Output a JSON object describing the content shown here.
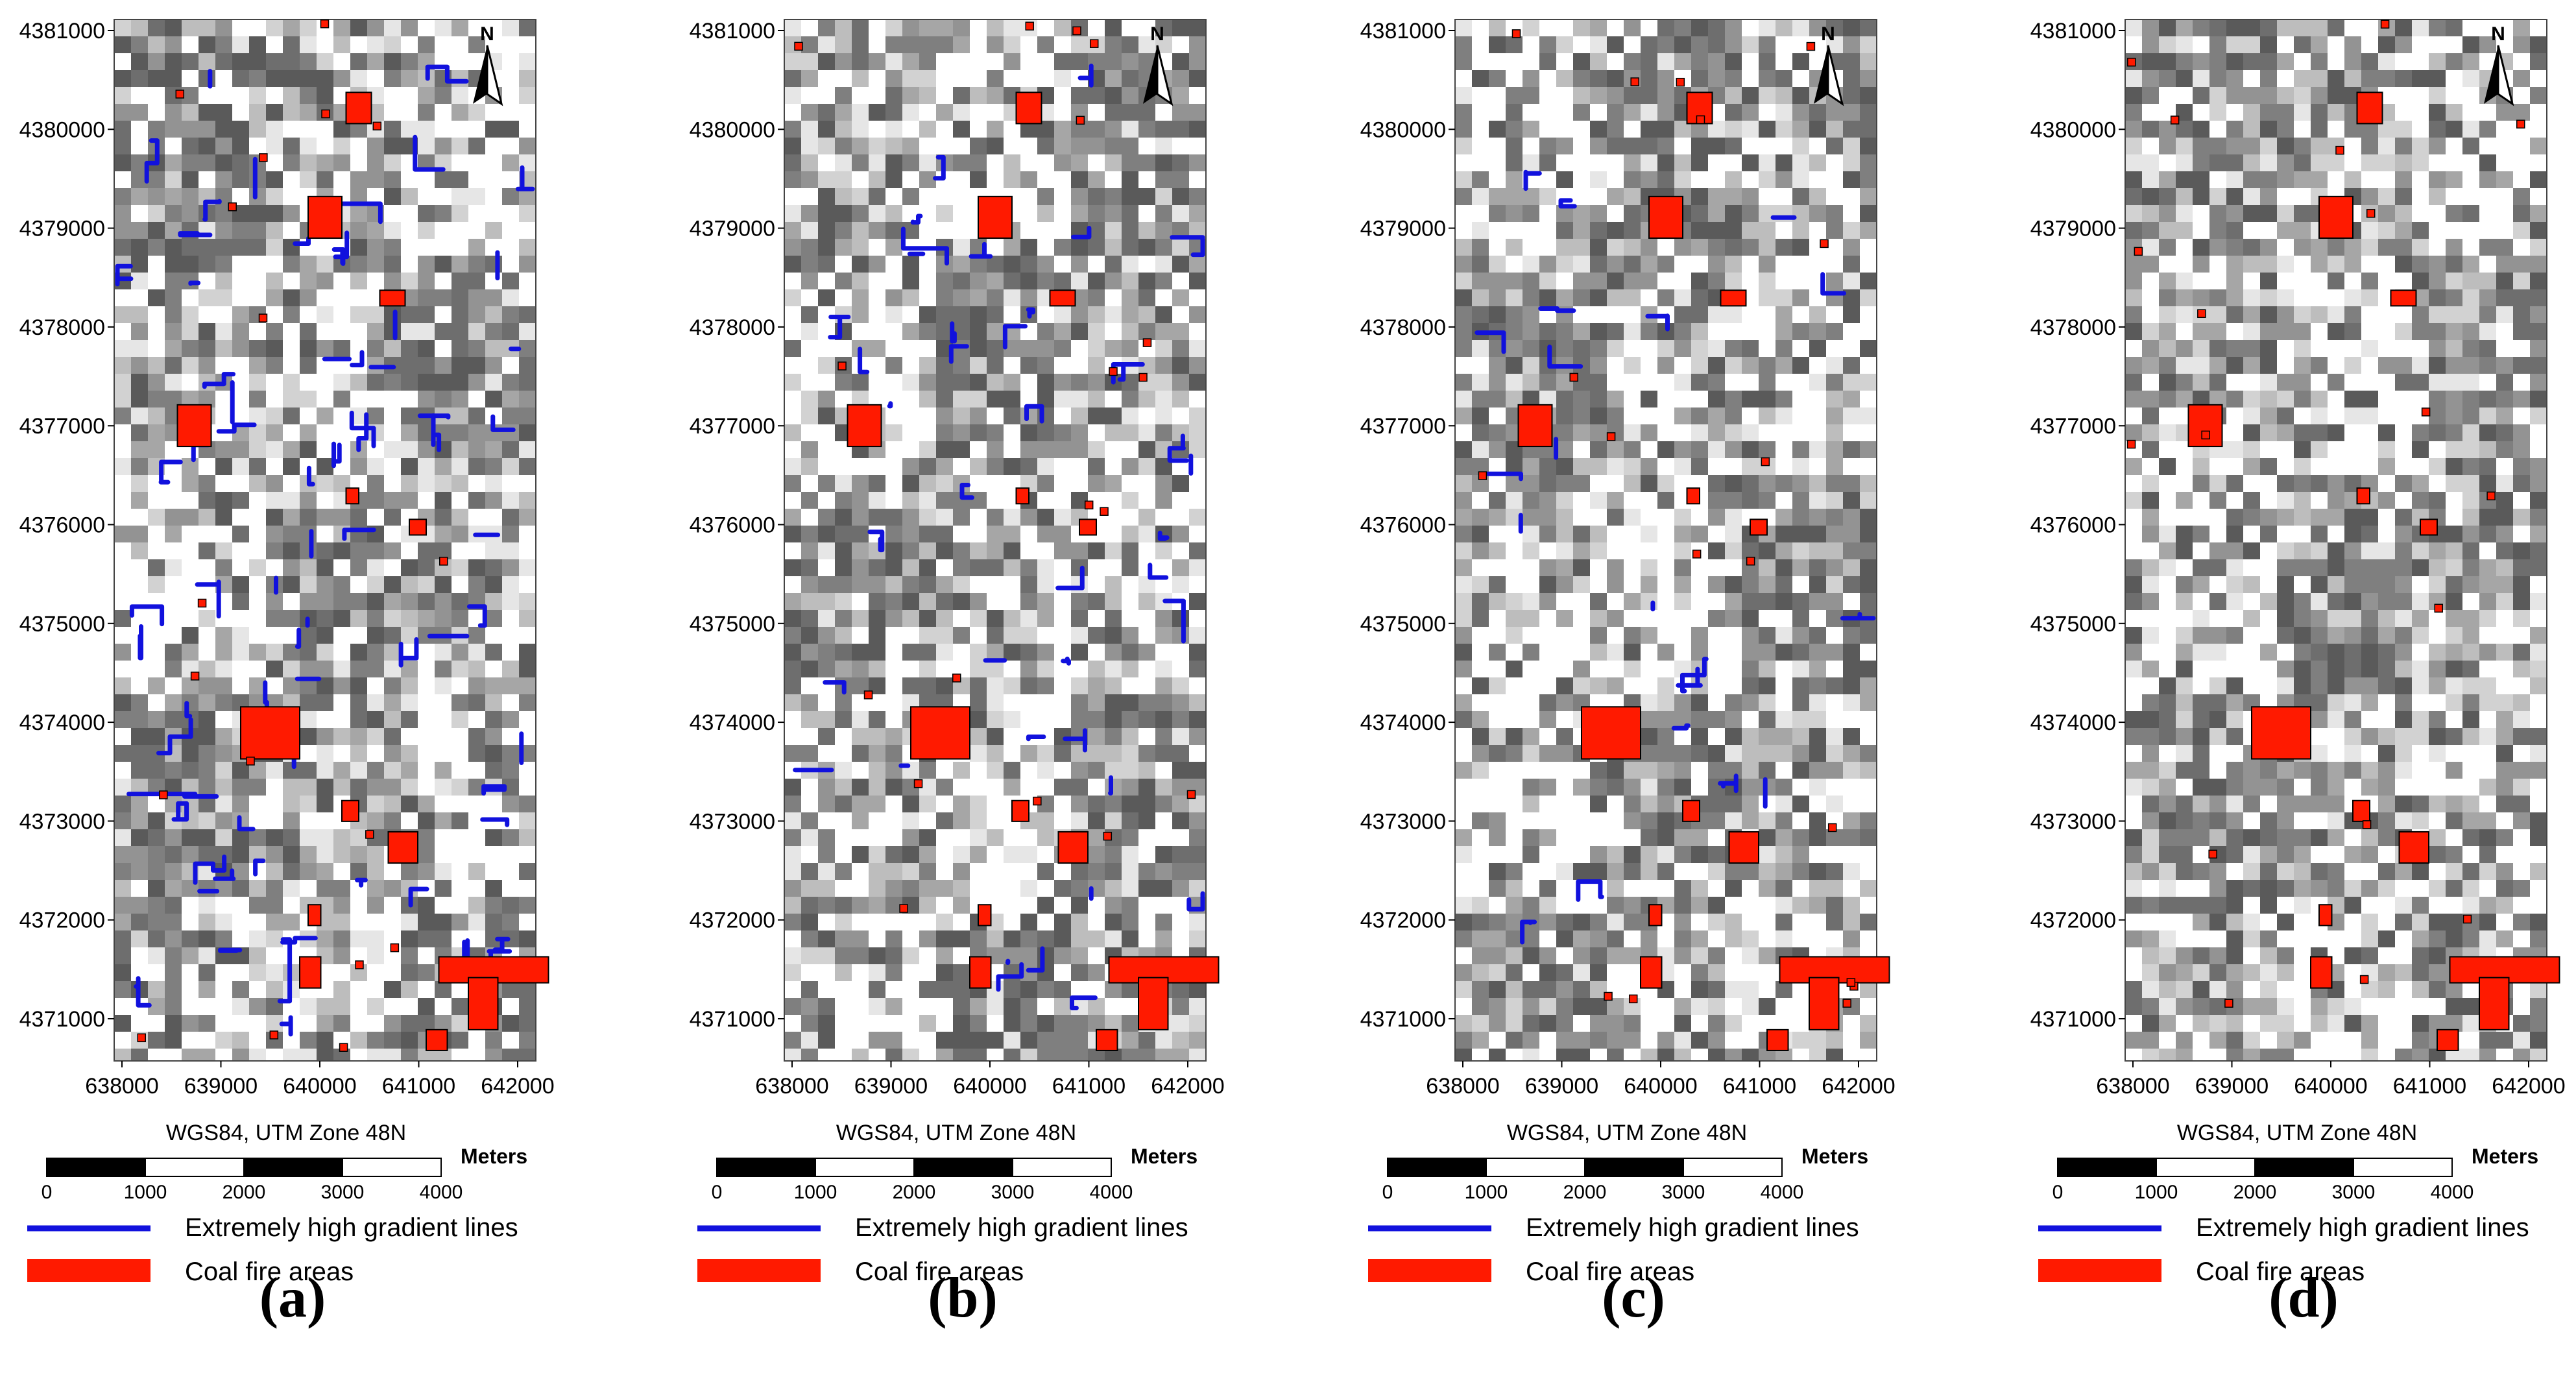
{
  "panels": [
    {
      "letter": "(a)",
      "gradient_lines": "dense"
    },
    {
      "letter": "(b)",
      "gradient_lines": "moderate"
    },
    {
      "letter": "(c)",
      "gradient_lines": "sparse"
    },
    {
      "letter": "(d)",
      "gradient_lines": "none"
    }
  ],
  "axes": {
    "y_ticks": [
      "4381000",
      "4380000",
      "4379000",
      "4378000",
      "4377000",
      "4376000",
      "4375000",
      "4374000",
      "4373000",
      "4372000",
      "4371000"
    ],
    "x_ticks": [
      "638000",
      "639000",
      "640000",
      "641000",
      "642000"
    ]
  },
  "north_arrow": {
    "label": "N"
  },
  "projection": "WGS84, UTM Zone 48N",
  "scalebar": {
    "ticks": [
      "0",
      "1000",
      "2000",
      "3000",
      "4000"
    ],
    "unit": "Meters"
  },
  "legend": {
    "gradient_label": "Extremely high gradient lines",
    "coal_label": "Coal fire areas",
    "gradient_color": "#1111dd",
    "coal_color": "#ff1a00"
  }
}
